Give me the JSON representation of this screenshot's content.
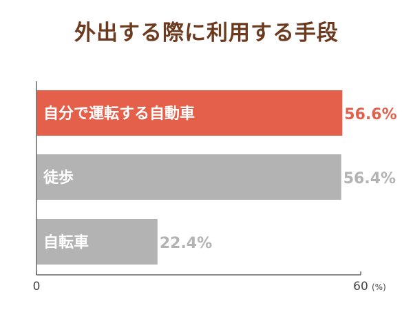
{
  "chart_data": {
    "type": "bar",
    "orientation": "horizontal",
    "title": "外出する際に利用する手段",
    "categories": [
      "自分で運転する自動車",
      "徒歩",
      "自転車"
    ],
    "values": [
      56.6,
      56.4,
      22.4
    ],
    "value_labels": [
      "56.6%",
      "56.4%",
      "22.4%"
    ],
    "xlim": [
      0,
      60
    ],
    "x_ticks": [
      "0",
      "60"
    ],
    "x_unit": "(%)",
    "grid": false,
    "legend": "none",
    "colors": {
      "highlight": "#e5604a",
      "bar": "#b3b3b3",
      "highlight_label": "#e5604a",
      "label": "#b3b3b3",
      "title": "#6b3a1f",
      "axis": "#666666"
    },
    "highlight_index": 0
  }
}
